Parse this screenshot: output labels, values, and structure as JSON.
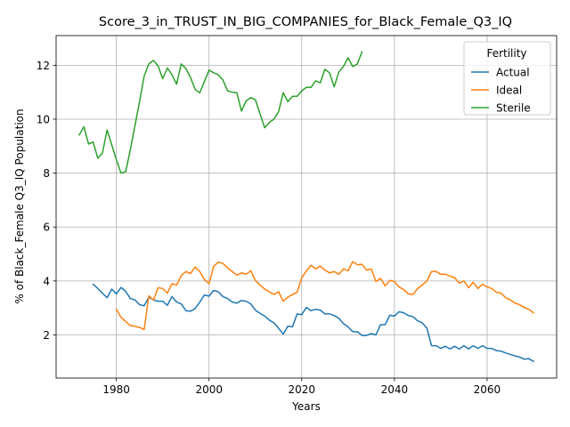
{
  "chart_data": {
    "type": "line",
    "title": "Score_3_in_TRUST_IN_BIG_COMPANIES_for_Black_Female_Q3_IQ",
    "xlabel": "Years",
    "ylabel": "% of Black_Female Q3_IQ Population",
    "xlim": [
      1967,
      2075
    ],
    "ylim": [
      0.4,
      13.1
    ],
    "x_ticks": [
      1980,
      2000,
      2020,
      2040,
      2060
    ],
    "y_ticks": [
      2,
      4,
      6,
      8,
      10,
      12
    ],
    "grid": true,
    "legend": {
      "title": "Fertility",
      "position": "top-right"
    },
    "series": [
      {
        "name": "Actual",
        "color": "#1f77b4",
        "x": [
          1975,
          1976,
          1977,
          1978,
          1979,
          1980,
          1981,
          1982,
          1983,
          1984,
          1985,
          1986,
          1987,
          1988,
          1989,
          1990,
          1991,
          1992,
          1993,
          1994,
          1995,
          1996,
          1997,
          1998,
          1999,
          2000,
          2001,
          2002,
          2003,
          2004,
          2005,
          2006,
          2007,
          2008,
          2009,
          2010,
          2011,
          2012,
          2013,
          2014,
          2015,
          2016,
          2017,
          2018,
          2019,
          2020,
          2021,
          2022,
          2023,
          2024,
          2025,
          2026,
          2027,
          2028,
          2029,
          2030,
          2031,
          2032,
          2033,
          2034,
          2035,
          2036,
          2037,
          2038,
          2039,
          2040,
          2041,
          2042,
          2043,
          2044,
          2045,
          2046,
          2047,
          2048,
          2049,
          2050,
          2051,
          2052,
          2053,
          2054,
          2055,
          2056,
          2057,
          2058,
          2059,
          2060,
          2061,
          2062,
          2063,
          2064,
          2065,
          2066,
          2067,
          2068,
          2069,
          2070
        ],
        "values": [
          3.88,
          3.72,
          3.55,
          3.38,
          3.7,
          3.52,
          3.76,
          3.62,
          3.35,
          3.3,
          3.12,
          3.08,
          3.4,
          3.3,
          3.25,
          3.25,
          3.1,
          3.42,
          3.22,
          3.15,
          2.9,
          2.88,
          2.98,
          3.22,
          3.48,
          3.44,
          3.65,
          3.6,
          3.42,
          3.35,
          3.22,
          3.18,
          3.28,
          3.25,
          3.15,
          2.92,
          2.8,
          2.7,
          2.55,
          2.45,
          2.25,
          2.03,
          2.32,
          2.3,
          2.78,
          2.75,
          3.02,
          2.9,
          2.95,
          2.92,
          2.78,
          2.78,
          2.72,
          2.62,
          2.42,
          2.3,
          2.12,
          2.12,
          1.98,
          1.98,
          2.05,
          2.0,
          2.38,
          2.38,
          2.73,
          2.7,
          2.86,
          2.82,
          2.72,
          2.68,
          2.52,
          2.45,
          2.25,
          1.6,
          1.6,
          1.5,
          1.58,
          1.48,
          1.58,
          1.48,
          1.6,
          1.48,
          1.6,
          1.5,
          1.6,
          1.5,
          1.5,
          1.42,
          1.4,
          1.33,
          1.28,
          1.22,
          1.18,
          1.1,
          1.12,
          1.02
        ]
      },
      {
        "name": "Ideal",
        "color": "#ff7f0e",
        "x": [
          1980,
          1981,
          1982,
          1983,
          1984,
          1985,
          1986,
          1987,
          1988,
          1989,
          1990,
          1991,
          1992,
          1993,
          1994,
          1995,
          1996,
          1997,
          1998,
          1999,
          2000,
          2001,
          2002,
          2003,
          2004,
          2005,
          2006,
          2007,
          2008,
          2009,
          2010,
          2011,
          2012,
          2013,
          2014,
          2015,
          2016,
          2017,
          2018,
          2019,
          2020,
          2021,
          2022,
          2023,
          2024,
          2025,
          2026,
          2027,
          2028,
          2029,
          2030,
          2031,
          2032,
          2033,
          2034,
          2035,
          2036,
          2037,
          2038,
          2039,
          2040,
          2041,
          2042,
          2043,
          2044,
          2045,
          2046,
          2047,
          2048,
          2049,
          2050,
          2051,
          2052,
          2053,
          2054,
          2055,
          2056,
          2057,
          2058,
          2059,
          2060,
          2061,
          2062,
          2063,
          2064,
          2065,
          2066,
          2067,
          2068,
          2069,
          2070
        ],
        "values": [
          2.95,
          2.65,
          2.5,
          2.35,
          2.32,
          2.28,
          2.2,
          3.45,
          3.3,
          3.75,
          3.72,
          3.55,
          3.9,
          3.85,
          4.2,
          4.35,
          4.28,
          4.52,
          4.35,
          4.05,
          3.9,
          4.55,
          4.7,
          4.65,
          4.48,
          4.35,
          4.22,
          4.3,
          4.25,
          4.38,
          4.02,
          3.85,
          3.7,
          3.6,
          3.5,
          3.6,
          3.25,
          3.4,
          3.5,
          3.58,
          4.12,
          4.38,
          4.58,
          4.45,
          4.55,
          4.4,
          4.3,
          4.35,
          4.25,
          4.45,
          4.38,
          4.72,
          4.6,
          4.62,
          4.4,
          4.45,
          3.98,
          4.1,
          3.82,
          4.02,
          3.98,
          3.78,
          3.68,
          3.52,
          3.5,
          3.72,
          3.85,
          4.0,
          4.35,
          4.35,
          4.25,
          4.25,
          4.18,
          4.12,
          3.92,
          4.0,
          3.75,
          3.95,
          3.72,
          3.88,
          3.78,
          3.72,
          3.58,
          3.55,
          3.38,
          3.3,
          3.18,
          3.12,
          3.02,
          2.95,
          2.82
        ]
      },
      {
        "name": "Sterile",
        "color": "#2ca02c",
        "x": [
          1972,
          1973,
          1974,
          1975,
          1976,
          1977,
          1978,
          1979,
          1980,
          1981,
          1982,
          1983,
          1984,
          1985,
          1986,
          1987,
          1988,
          1989,
          1990,
          1991,
          1992,
          1993,
          1994,
          1995,
          1996,
          1997,
          1998,
          1999,
          2000,
          2001,
          2002,
          2003,
          2004,
          2005,
          2006,
          2007,
          2008,
          2009,
          2010,
          2011,
          2012,
          2013,
          2014,
          2015,
          2016,
          2017,
          2018,
          2019,
          2020,
          2021,
          2022,
          2023,
          2024,
          2025,
          2026,
          2027,
          2028,
          2029,
          2030,
          2031,
          2032,
          2033
        ],
        "values": [
          9.42,
          9.72,
          9.08,
          9.15,
          8.55,
          8.75,
          9.6,
          9.05,
          8.5,
          8.0,
          8.05,
          8.85,
          9.75,
          10.65,
          11.6,
          12.05,
          12.18,
          11.98,
          11.5,
          11.9,
          11.65,
          11.3,
          12.05,
          11.88,
          11.55,
          11.1,
          10.98,
          11.4,
          11.82,
          11.72,
          11.65,
          11.45,
          11.05,
          11.0,
          10.98,
          10.3,
          10.68,
          10.8,
          10.72,
          10.2,
          9.68,
          9.88,
          10.0,
          10.28,
          10.98,
          10.65,
          10.85,
          10.85,
          11.05,
          11.18,
          11.18,
          11.42,
          11.35,
          11.85,
          11.72,
          11.2,
          11.75,
          11.95,
          12.28,
          11.95,
          12.05,
          12.5
        ]
      }
    ]
  }
}
